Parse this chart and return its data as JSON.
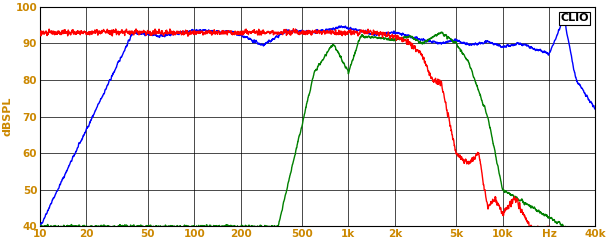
{
  "title": "CLIO",
  "ylabel": "dBSPL",
  "xlabel": "Hz",
  "xmin": 10,
  "xmax": 40000,
  "ymin": 40,
  "ymax": 100,
  "yticks": [
    40,
    50,
    60,
    70,
    80,
    90,
    100
  ],
  "xticks": [
    10,
    20,
    50,
    100,
    200,
    500,
    1000,
    2000,
    5000,
    10000,
    20000,
    40000
  ],
  "xticklabels": [
    "10",
    "20",
    "50",
    "100",
    "200",
    "500",
    "1k",
    "2k",
    "5k",
    "10k",
    "Hz",
    "40k"
  ],
  "bg_color": "#ffffff",
  "grid_color": "#000000",
  "blue_color": "#0000ff",
  "red_color": "#ff0000",
  "green_color": "#008000",
  "line_width": 1.0
}
